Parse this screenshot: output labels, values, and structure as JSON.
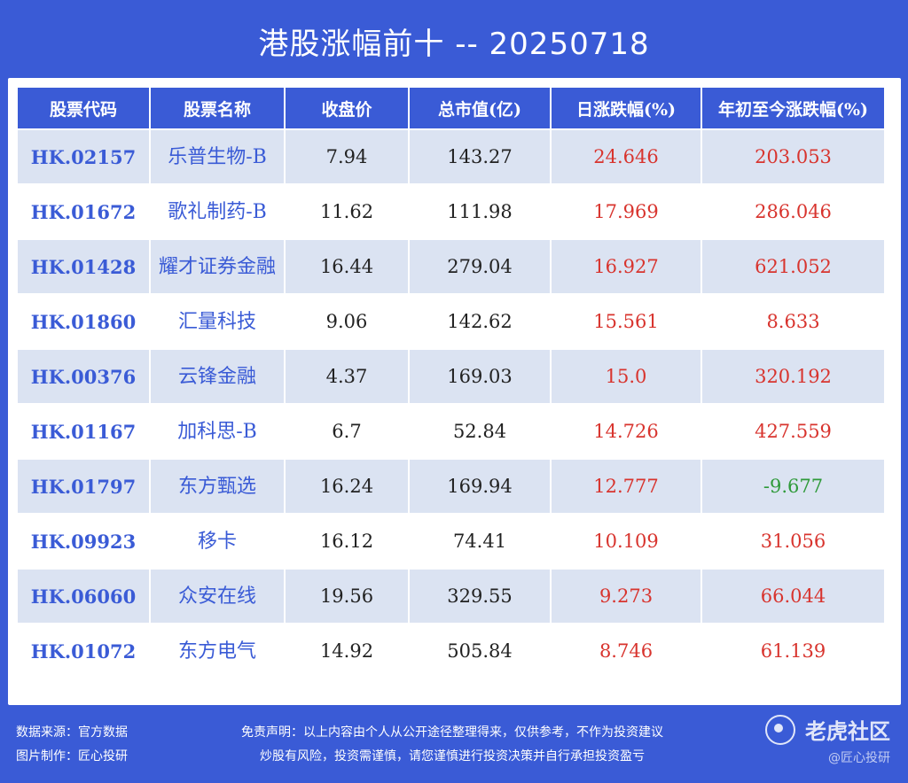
{
  "title": "港股涨幅前十 -- 20250718",
  "table": {
    "headers": [
      "股票代码",
      "股票名称",
      "收盘价",
      "总市值(亿)",
      "日涨跌幅(%)",
      "年初至今涨跌幅(%)"
    ],
    "rows": [
      {
        "code": "HK.02157",
        "name": "乐普生物-B",
        "close": "7.94",
        "mcap": "143.27",
        "day": "24.646",
        "ytd": "203.053",
        "ytd_dir": "up"
      },
      {
        "code": "HK.01672",
        "name": "歌礼制药-B",
        "close": "11.62",
        "mcap": "111.98",
        "day": "17.969",
        "ytd": "286.046",
        "ytd_dir": "up"
      },
      {
        "code": "HK.01428",
        "name": "耀才证券金融",
        "close": "16.44",
        "mcap": "279.04",
        "day": "16.927",
        "ytd": "621.052",
        "ytd_dir": "up"
      },
      {
        "code": "HK.01860",
        "name": "汇量科技",
        "close": "9.06",
        "mcap": "142.62",
        "day": "15.561",
        "ytd": "8.633",
        "ytd_dir": "up"
      },
      {
        "code": "HK.00376",
        "name": "云锋金融",
        "close": "4.37",
        "mcap": "169.03",
        "day": "15.0",
        "ytd": "320.192",
        "ytd_dir": "up"
      },
      {
        "code": "HK.01167",
        "name": "加科思-B",
        "close": "6.7",
        "mcap": "52.84",
        "day": "14.726",
        "ytd": "427.559",
        "ytd_dir": "up"
      },
      {
        "code": "HK.01797",
        "name": "东方甄选",
        "close": "16.24",
        "mcap": "169.94",
        "day": "12.777",
        "ytd": "-9.677",
        "ytd_dir": "down"
      },
      {
        "code": "HK.09923",
        "name": "移卡",
        "close": "16.12",
        "mcap": "74.41",
        "day": "10.109",
        "ytd": "31.056",
        "ytd_dir": "up"
      },
      {
        "code": "HK.06060",
        "name": "众安在线",
        "close": "19.56",
        "mcap": "329.55",
        "day": "9.273",
        "ytd": "66.044",
        "ytd_dir": "up"
      },
      {
        "code": "HK.01072",
        "name": "东方电气",
        "close": "14.92",
        "mcap": "505.84",
        "day": "8.746",
        "ytd": "61.139",
        "ytd_dir": "up"
      }
    ]
  },
  "footer": {
    "source": "数据来源：官方数据",
    "maker": "图片制作：匠心投研",
    "disclaimer1": "免责声明：以上内容由个人从公开途径整理得来，仅供参考，不作为投资建议",
    "disclaimer2": "炒股有风险，投资需谨慎，请您谨慎进行投资决策并自行承担投资盈亏"
  },
  "watermark": {
    "brand": "老虎社区",
    "sub": "@匠心投研",
    "icon": "tiger-logo-icon"
  },
  "colors": {
    "background": "#3a5bd6",
    "row_alt": "#dbe3f2",
    "up": "#d8342e",
    "down": "#2f9a3a"
  }
}
